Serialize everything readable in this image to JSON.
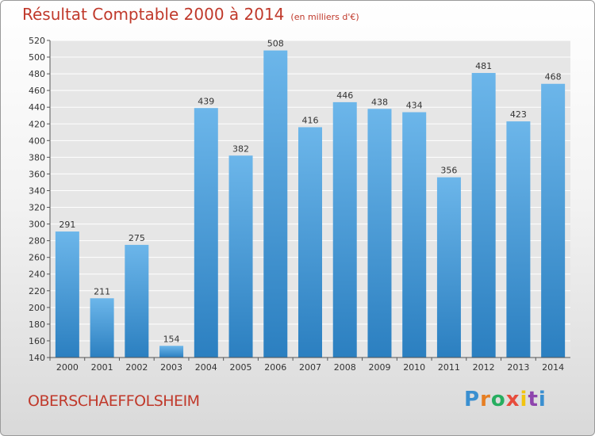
{
  "title": "Résultat Comptable 2000 à 2014",
  "subtitle": "(en milliers d'€)",
  "commune": "OBERSCHAEFFOLSHEIM",
  "logo": {
    "text": "Proxiti",
    "letters": [
      "P",
      "r",
      "o",
      "x",
      "i",
      "t",
      "i"
    ],
    "colors": [
      "#3a8fd0",
      "#e67e22",
      "#27ae60",
      "#e74c3c",
      "#f1c40f",
      "#8e44ad",
      "#3a8fd0"
    ]
  },
  "colors": {
    "bar_top": "#6cb6ea",
    "bar_bottom": "#2b7fc0",
    "accent": "#c0392b"
  },
  "chart_data": {
    "type": "bar",
    "title": "Résultat Comptable 2000 à 2014",
    "xlabel": "",
    "ylabel": "",
    "categories": [
      "2000",
      "2001",
      "2002",
      "2003",
      "2004",
      "2005",
      "2006",
      "2007",
      "2008",
      "2009",
      "2010",
      "2011",
      "2012",
      "2013",
      "2014"
    ],
    "values": [
      291,
      211,
      275,
      154,
      439,
      382,
      508,
      416,
      446,
      438,
      434,
      356,
      481,
      423,
      468
    ],
    "ylim": [
      140,
      520
    ],
    "ytick_step": 20,
    "grid": true
  }
}
